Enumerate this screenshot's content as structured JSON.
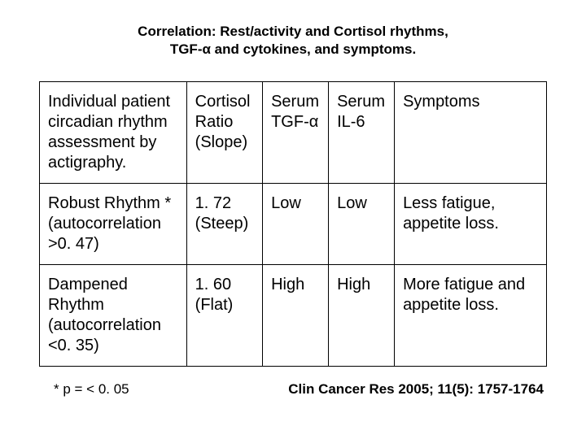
{
  "title_line1": "Correlation: Rest/activity and Cortisol rhythms,",
  "title_line2": "TGF-α and cytokines, and symptoms.",
  "table": {
    "header": {
      "c1": "Individual patient circadian rhythm assessment by actigraphy.",
      "c2": "Cortisol Ratio (Slope)",
      "c3": "Serum TGF-α",
      "c4": "Serum IL-6",
      "c5": "Symptoms"
    },
    "row1": {
      "c1": "Robust Rhythm * (autocorrelation >0. 47)",
      "c2": "1. 72 (Steep)",
      "c3": "Low",
      "c4": "Low",
      "c5": "Less fatigue, appetite loss."
    },
    "row2": {
      "c1": "Dampened Rhythm (autocorrelation <0. 35)",
      "c2": "1. 60 (Flat)",
      "c3": "High",
      "c4": "High",
      "c5": "More fatigue and appetite loss."
    }
  },
  "footnote": "*  p = < 0. 05",
  "citation": "Clin Cancer Res 2005; 11(5): 1757-1764"
}
